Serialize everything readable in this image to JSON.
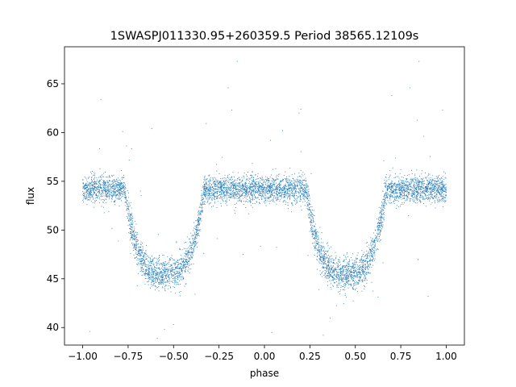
{
  "chart_data": {
    "type": "scatter",
    "title": "1SWASPJ011330.95+260359.5 Period 38565.12109s",
    "xlabel": "phase",
    "ylabel": "flux",
    "xlim": [
      -1.1,
      1.1
    ],
    "ylim": [
      38.2,
      68.8
    ],
    "xticks": [
      -1.0,
      -0.75,
      -0.5,
      -0.25,
      0.0,
      0.25,
      0.5,
      0.75,
      1.0
    ],
    "xtick_labels": [
      "−1.00",
      "−0.75",
      "−0.50",
      "−0.25",
      "0.00",
      "0.25",
      "0.50",
      "0.75",
      "1.00"
    ],
    "yticks": [
      40,
      45,
      50,
      55,
      60,
      65
    ],
    "ytick_labels": [
      "40",
      "45",
      "50",
      "55",
      "60",
      "65"
    ],
    "grid": false,
    "legend": "none",
    "point_color": "#1f77b4",
    "light_curve_model": {
      "phase_range": [
        -1.0,
        1.0
      ],
      "baseline_flux": 54.2,
      "baseline_scatter": 0.9,
      "eclipse_centers": [
        -0.55,
        0.45
      ],
      "eclipse_min_flux": 45.5,
      "eclipse_half_width": 0.22,
      "n_points": 6500,
      "outlier_fraction": 0.012
    },
    "outliers": [
      {
        "x": -0.96,
        "y": 39.6
      },
      {
        "x": -0.9,
        "y": 63.4
      },
      {
        "x": -0.78,
        "y": 60.1
      },
      {
        "x": -0.62,
        "y": 60.4
      },
      {
        "x": -0.55,
        "y": 39.8
      },
      {
        "x": -0.2,
        "y": 64.6
      },
      {
        "x": -0.18,
        "y": 62.3
      },
      {
        "x": -0.15,
        "y": 67.3
      },
      {
        "x": 0.04,
        "y": 39.5
      },
      {
        "x": 0.1,
        "y": 60.2
      },
      {
        "x": 0.2,
        "y": 62.4
      },
      {
        "x": 0.7,
        "y": 63.8
      },
      {
        "x": 0.8,
        "y": 64.6
      },
      {
        "x": 0.85,
        "y": 67.3
      },
      {
        "x": 0.98,
        "y": 62.3
      },
      {
        "x": 0.3,
        "y": 43.9
      },
      {
        "x": 0.9,
        "y": 43.2
      },
      {
        "x": -0.7,
        "y": 44.3
      }
    ]
  }
}
